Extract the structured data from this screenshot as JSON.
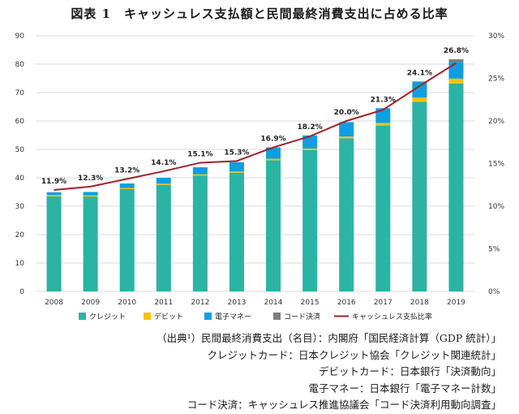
{
  "title": "図表 1　キャッシュレス支払額と民間最終消費支出に占める比率",
  "chart_data": {
    "type": "bar",
    "stacked": true,
    "categories": [
      "2008",
      "2009",
      "2010",
      "2011",
      "2012",
      "2013",
      "2014",
      "2015",
      "2016",
      "2017",
      "2018",
      "2019"
    ],
    "series": [
      {
        "name": "クレジット",
        "color": "#2bb3a3",
        "values": [
          33.5,
          33.4,
          36.0,
          37.5,
          40.8,
          41.8,
          46.2,
          49.8,
          53.9,
          58.4,
          66.7,
          73.2
        ]
      },
      {
        "name": "デビット",
        "color": "#f5c400",
        "values": [
          0.4,
          0.4,
          0.4,
          0.4,
          0.4,
          0.4,
          0.5,
          0.5,
          0.6,
          0.9,
          1.5,
          1.7
        ]
      },
      {
        "name": "電子マネー",
        "color": "#0f9ee0",
        "values": [
          1.0,
          1.2,
          1.6,
          2.1,
          2.5,
          3.3,
          4.0,
          4.6,
          5.1,
          5.2,
          5.5,
          5.8
        ]
      },
      {
        "name": "コード決済",
        "color": "#7f7f7f",
        "values": [
          0,
          0,
          0,
          0,
          0,
          0,
          0,
          0,
          0,
          0,
          0.2,
          1.0
        ]
      }
    ],
    "line": {
      "name": "キャッシュレス支払比率",
      "color": "#a0222a",
      "values": [
        11.9,
        12.3,
        13.2,
        14.1,
        15.1,
        15.3,
        16.9,
        18.2,
        20.0,
        21.3,
        24.1,
        26.8
      ],
      "labels": [
        "11.9%",
        "12.3%",
        "13.2%",
        "14.1%",
        "15.1%",
        "15.3%",
        "16.9%",
        "18.2%",
        "20.0%",
        "21.3%",
        "24.1%",
        "26.8%"
      ]
    },
    "y_left": {
      "min": 0,
      "max": 90,
      "ticks": [
        "0",
        "10",
        "20",
        "30",
        "40",
        "50",
        "60",
        "70",
        "80",
        "90"
      ]
    },
    "y_right": {
      "min": 0,
      "max": 30,
      "ticks": [
        "0%",
        "5%",
        "10%",
        "15%",
        "20%",
        "25%",
        "30%"
      ]
    },
    "legend_position": "bottom"
  },
  "sources": [
    "（出典¹）民間最終消費支出（名目）：内閣府「国民経済計算（GDP 統計）」",
    "クレジットカード：日本クレジット協会「クレジット関連統計」",
    "デビットカード：日本銀行「決済動向」",
    "電子マネー：日本銀行「電子マネー計数」",
    "コード決済：キャッシュレス推進協議会「コード決済利用動向調査」"
  ]
}
